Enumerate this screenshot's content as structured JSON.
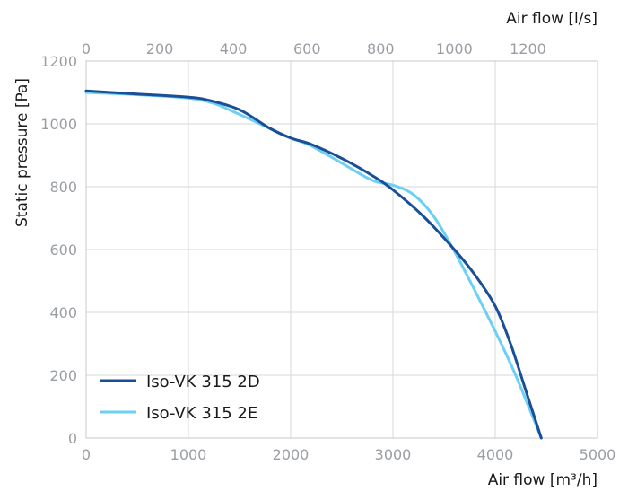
{
  "chart_data": {
    "type": "line",
    "xlabel": "Air flow [m³/h]",
    "x2label": "Air flow [l/s]",
    "ylabel": "Static pressure [Pa]",
    "xlim": [
      0,
      5000
    ],
    "x2lim": [
      0,
      1388.9
    ],
    "ylim": [
      0,
      1200
    ],
    "xticks": [
      0,
      1000,
      2000,
      3000,
      4000,
      5000
    ],
    "x2ticks": [
      0,
      200,
      400,
      600,
      800,
      1000,
      1200
    ],
    "yticks": [
      0,
      200,
      400,
      600,
      800,
      1000,
      1200
    ],
    "grid": true,
    "legend": "bottom-left",
    "series": [
      {
        "name": "Iso-VK 315 2D",
        "color": "#1a4f97",
        "x": [
          0,
          500,
          1000,
          1200,
          1500,
          1800,
          2000,
          2200,
          2500,
          2800,
          3000,
          3300,
          3600,
          3800,
          4000,
          4150,
          4300,
          4450
        ],
        "y": [
          1105,
          1095,
          1085,
          1075,
          1045,
          985,
          955,
          935,
          890,
          835,
          790,
          705,
          600,
          520,
          420,
          300,
          150,
          0
        ]
      },
      {
        "name": "Iso-VK 315 2E",
        "color": "#6ccff3",
        "x": [
          0,
          500,
          1000,
          1250,
          1500,
          1800,
          2000,
          2200,
          2500,
          2800,
          3000,
          3200,
          3400,
          3600,
          3800,
          4000,
          4200,
          4450
        ],
        "y": [
          1100,
          1093,
          1082,
          1065,
          1030,
          985,
          955,
          930,
          875,
          820,
          805,
          775,
          705,
          595,
          470,
          340,
          200,
          0
        ]
      }
    ]
  }
}
